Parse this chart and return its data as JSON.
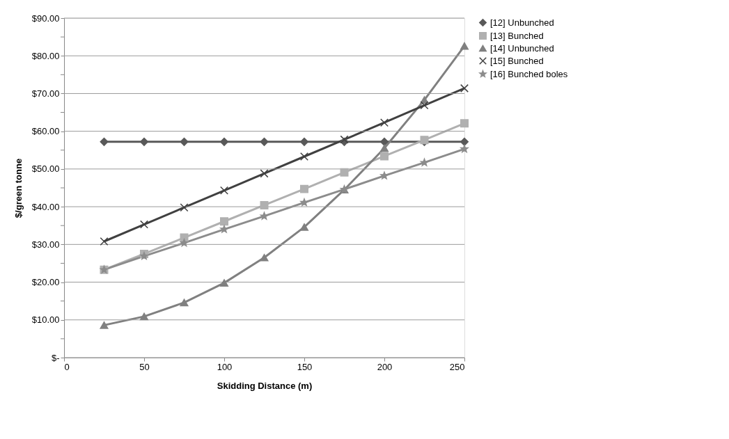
{
  "chart_data": {
    "type": "line",
    "xlabel": "Skidding Distance (m)",
    "ylabel": "$/green tonne",
    "x": [
      25,
      50,
      75,
      100,
      125,
      150,
      175,
      200,
      225,
      250
    ],
    "xlim": [
      0,
      250
    ],
    "xticks": [
      0,
      50,
      100,
      150,
      200,
      250
    ],
    "ylim": [
      0,
      90
    ],
    "yticks": [
      {
        "value": 0,
        "label": "$-"
      },
      {
        "value": 5,
        "label": null
      },
      {
        "value": 10,
        "label": "$10.00"
      },
      {
        "value": 15,
        "label": null
      },
      {
        "value": 20,
        "label": "$20.00"
      },
      {
        "value": 25,
        "label": null
      },
      {
        "value": 30,
        "label": "$30.00"
      },
      {
        "value": 35,
        "label": null
      },
      {
        "value": 40,
        "label": "$40.00"
      },
      {
        "value": 45,
        "label": null
      },
      {
        "value": 50,
        "label": "$50.00"
      },
      {
        "value": 55,
        "label": null
      },
      {
        "value": 60,
        "label": "$60.00"
      },
      {
        "value": 65,
        "label": null
      },
      {
        "value": 70,
        "label": "$70.00"
      },
      {
        "value": 75,
        "label": null
      },
      {
        "value": 80,
        "label": "$80.00"
      },
      {
        "value": 85,
        "label": null
      },
      {
        "value": 90,
        "label": "$90.00"
      }
    ],
    "grid": "y",
    "legend": "right",
    "line_style": "solid",
    "series": [
      {
        "name": "[12] Unbunched",
        "color": "#595959",
        "marker": "diamond",
        "values": [
          57.2,
          57.2,
          57.2,
          57.2,
          57.2,
          57.2,
          57.2,
          57.2,
          57.2,
          57.2
        ]
      },
      {
        "name": "[13] Bunched",
        "color": "#b0b0b0",
        "marker": "square",
        "values": [
          23.3,
          27.5,
          31.8,
          36.1,
          40.4,
          44.7,
          49.1,
          53.4,
          57.7,
          62.1
        ]
      },
      {
        "name": "[14] Unbunched",
        "color": "#808080",
        "marker": "triangle",
        "values": [
          8.6,
          10.9,
          14.6,
          19.8,
          26.5,
          34.6,
          44.5,
          55.5,
          68.3,
          82.6
        ]
      },
      {
        "name": "[15] Bunched",
        "color": "#404040",
        "marker": "cross",
        "values": [
          30.8,
          35.3,
          39.8,
          44.3,
          48.8,
          53.3,
          57.8,
          62.3,
          66.9,
          71.4
        ]
      },
      {
        "name": "[16] Bunched boles",
        "color": "#8c8c8c",
        "marker": "star",
        "values": [
          23.3,
          26.9,
          30.4,
          34.0,
          37.5,
          41.1,
          44.6,
          48.2,
          51.7,
          55.3
        ]
      }
    ]
  }
}
